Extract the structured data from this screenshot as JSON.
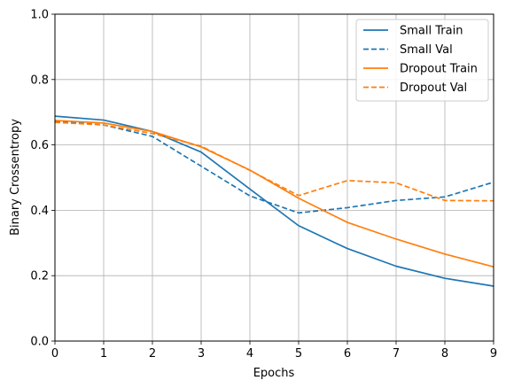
{
  "chart_data": {
    "type": "line",
    "xlabel": "Epochs",
    "ylabel": "Binary Crossentropy",
    "xlim": [
      0,
      9
    ],
    "ylim": [
      0,
      1
    ],
    "xticks": [
      "0",
      "1",
      "2",
      "3",
      "4",
      "5",
      "6",
      "7",
      "8",
      "9"
    ],
    "yticks": [
      "0.0",
      "0.2",
      "0.4",
      "0.6",
      "0.8",
      "1.0"
    ],
    "grid": true,
    "legend_position": "top-right",
    "x": [
      0,
      1,
      2,
      3,
      4,
      5,
      6,
      7,
      8,
      9
    ],
    "series": [
      {
        "name": "Small Train",
        "color": "#1f77b4",
        "dash": "solid",
        "values": [
          0.688,
          0.676,
          0.641,
          0.578,
          0.465,
          0.353,
          0.283,
          0.229,
          0.192,
          0.168
        ]
      },
      {
        "name": "Small Val",
        "color": "#1f77b4",
        "dash": "dashed",
        "values": [
          0.673,
          0.661,
          0.626,
          0.535,
          0.444,
          0.392,
          0.408,
          0.43,
          0.441,
          0.486
        ]
      },
      {
        "name": "Dropout Train",
        "color": "#ff7f0e",
        "dash": "solid",
        "values": [
          0.675,
          0.667,
          0.641,
          0.594,
          0.523,
          0.437,
          0.363,
          0.312,
          0.266,
          0.227
        ]
      },
      {
        "name": "Dropout Val",
        "color": "#ff7f0e",
        "dash": "dashed",
        "values": [
          0.669,
          0.661,
          0.635,
          0.596,
          0.522,
          0.445,
          0.491,
          0.484,
          0.43,
          0.429
        ]
      }
    ]
  }
}
